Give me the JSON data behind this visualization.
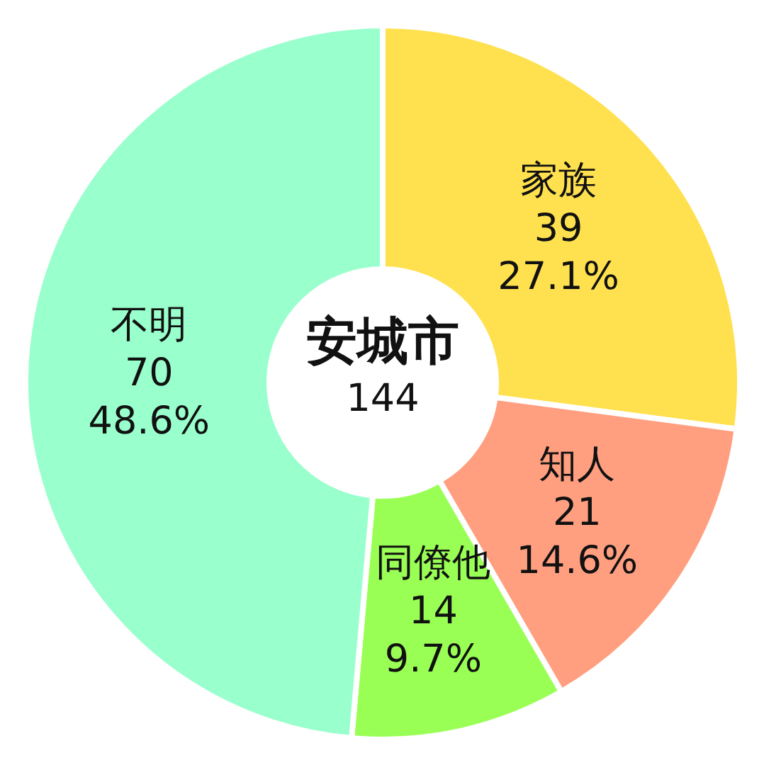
{
  "chart_data": {
    "type": "donut",
    "title": "安城市",
    "annotations": [
      "144"
    ],
    "categories": [
      "家族",
      "知人",
      "同僚他",
      "不明"
    ],
    "values": [
      39,
      21,
      14,
      70
    ],
    "colors": [
      "#ffe14f",
      "#ff9f80",
      "#99ff55",
      "#99ffcc"
    ],
    "value_labels": [
      "39\n27.1%",
      "21\n14.6%",
      "14\n9.7%",
      "70\n48.6%"
    ]
  }
}
